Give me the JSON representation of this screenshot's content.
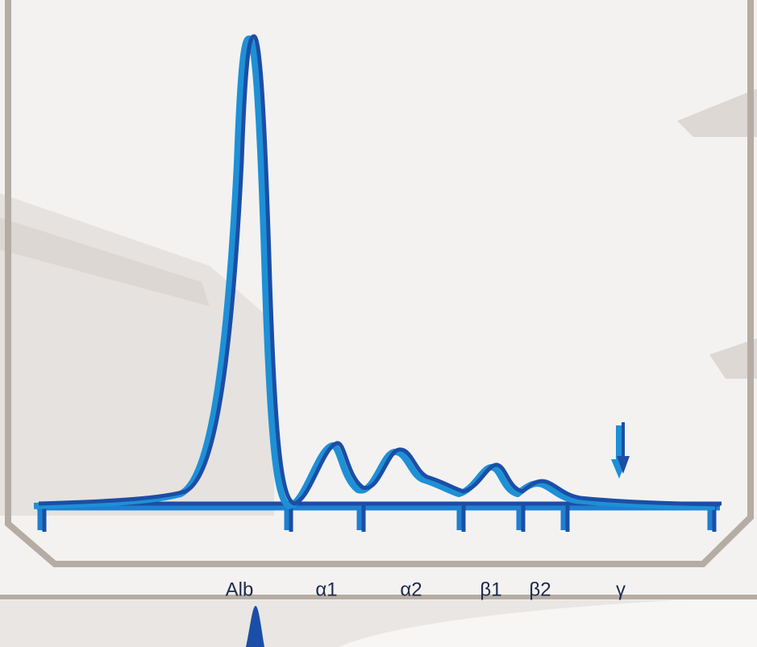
{
  "fractions": {
    "labels": [
      "Alb",
      "α1",
      "α2",
      "β1",
      "β2",
      "γ"
    ]
  }
}
